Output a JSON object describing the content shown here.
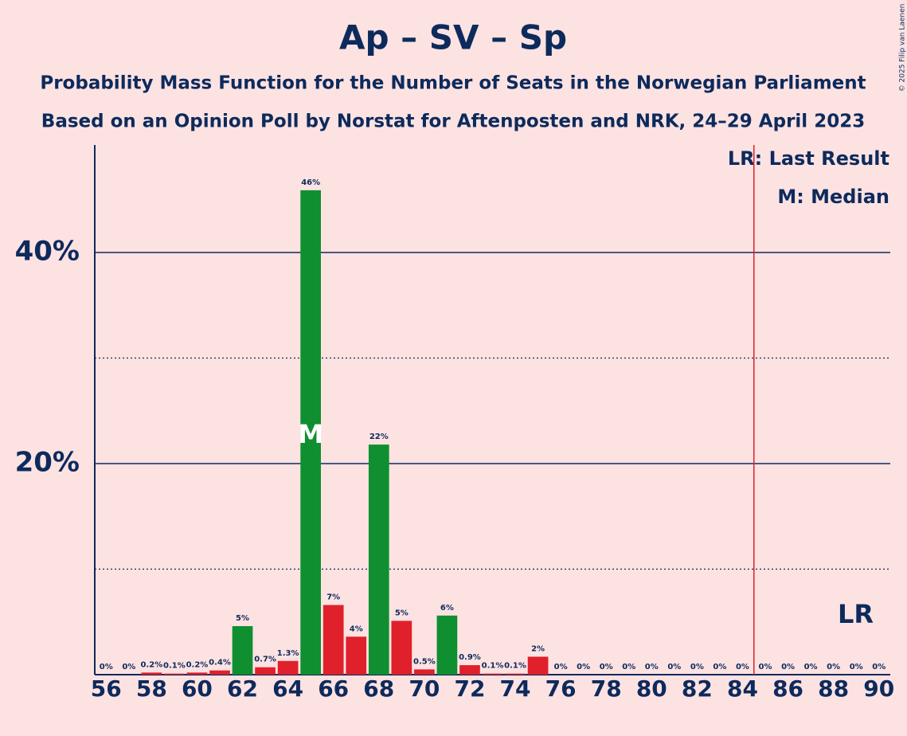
{
  "chart_data": {
    "type": "bar",
    "title": "Ap – SV – Sp",
    "subtitle": "Probability Mass Function for the Number of Seats in the Norwegian Parliament",
    "subtitle2": "Based on an Opinion Poll by Norstat for Aftenposten and NRK, 24–29 April 2023",
    "x": [
      56,
      57,
      58,
      59,
      60,
      61,
      62,
      63,
      64,
      65,
      66,
      67,
      68,
      69,
      70,
      71,
      72,
      73,
      74,
      75,
      76,
      77,
      78,
      79,
      80,
      81,
      82,
      83,
      84,
      85,
      86,
      87,
      88,
      89,
      90
    ],
    "values": [
      0,
      0,
      0.2,
      0.1,
      0.2,
      0.4,
      4.6,
      0.7,
      1.3,
      45.9,
      6.6,
      3.6,
      21.8,
      5.1,
      0.5,
      5.6,
      0.9,
      0.1,
      0.1,
      1.7,
      0,
      0,
      0,
      0,
      0,
      0,
      0,
      0,
      0,
      0,
      0,
      0,
      0,
      0,
      0
    ],
    "value_labels": [
      "0%",
      "0%",
      "0.2%",
      "0.1%",
      "0.2%",
      "0.4%",
      "5%",
      "0.7%",
      "1.3%",
      "46%",
      "7%",
      "4%",
      "22%",
      "5%",
      "0.5%",
      "6%",
      "0.9%",
      "0.1%",
      "0.1%",
      "2%",
      "0%",
      "0%",
      "0%",
      "0%",
      "0%",
      "0%",
      "0%",
      "0%",
      "0%",
      "0%",
      "0%",
      "0%",
      "0%",
      "0%",
      "0%"
    ],
    "colors": [
      "#e0202a",
      "#e0202a",
      "#e0202a",
      "#e0202a",
      "#e0202a",
      "#e0202a",
      "#0f8f2f",
      "#e0202a",
      "#e0202a",
      "#0f8f2f",
      "#e0202a",
      "#e0202a",
      "#0f8f2f",
      "#e0202a",
      "#e0202a",
      "#0f8f2f",
      "#e0202a",
      "#e0202a",
      "#e0202a",
      "#e0202a",
      "#e0202a",
      "#e0202a",
      "#e0202a",
      "#e0202a",
      "#e0202a",
      "#e0202a",
      "#e0202a",
      "#e0202a",
      "#e0202a",
      "#e0202a",
      "#e0202a",
      "#e0202a",
      "#e0202a",
      "#e0202a",
      "#e0202a"
    ],
    "xlim": [
      55.5,
      90.5
    ],
    "xticks": [
      56,
      58,
      60,
      62,
      64,
      66,
      68,
      70,
      72,
      74,
      76,
      78,
      80,
      82,
      84,
      86,
      88,
      90
    ],
    "ylim": [
      0,
      50
    ],
    "yticks": [
      {
        "value": 20,
        "label": "20%"
      },
      {
        "value": 40,
        "label": "40%"
      }
    ],
    "minor_gridlines": [
      10,
      30
    ],
    "median": 65,
    "median_label": "M",
    "last_result_line": 84.5,
    "last_result_label": "LR",
    "legend": [
      "LR: Last Result",
      "M: Median"
    ],
    "copyright": "© 2025 Filip van Laenen"
  }
}
